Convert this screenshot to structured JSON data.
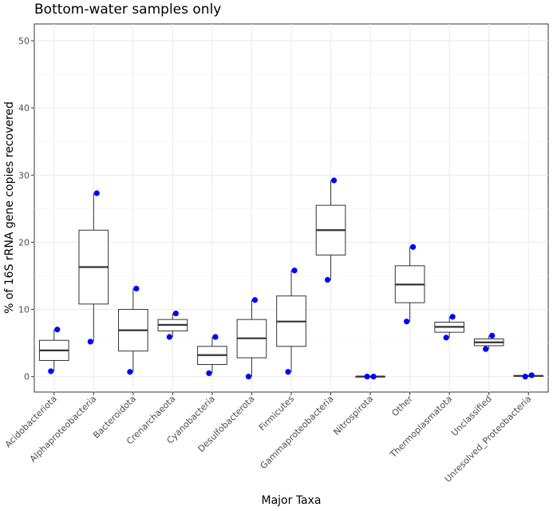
{
  "chart_data": {
    "type": "box",
    "title": "Bottom-water samples only",
    "xlabel": "Major Taxa",
    "ylabel": "% of 16S rRNA gene copies recovered",
    "ylim": [
      -2.3,
      52.5
    ],
    "y_ticks": [
      0,
      10,
      20,
      30,
      40,
      50
    ],
    "grid": true,
    "point_color": "#0000ff",
    "categories": [
      "Acidobacteriota",
      "Alphaproteobacteria",
      "Bacteroidota",
      "Crenarchaeota",
      "Cyanobacteria",
      "Desulfobacterota",
      "Firmicutes",
      "Gammaproteobacteria",
      "Nitrospirota",
      "Other",
      "Thermoplasmatota",
      "Unclassified",
      "Unresolved_Proteobacteria"
    ],
    "boxes": [
      {
        "category": "Acidobacteriota",
        "min": 0.8,
        "q1": 2.4,
        "median": 3.9,
        "q3": 5.4,
        "max": 7.0,
        "points": [
          7.0,
          0.8
        ]
      },
      {
        "category": "Alphaproteobacteria",
        "min": 5.2,
        "q1": 10.8,
        "median": 16.3,
        "q3": 21.8,
        "max": 27.3,
        "points": [
          27.3,
          5.2
        ]
      },
      {
        "category": "Bacteroidota",
        "min": 0.7,
        "q1": 3.8,
        "median": 6.9,
        "q3": 10.0,
        "max": 13.1,
        "points": [
          13.1,
          0.7
        ]
      },
      {
        "category": "Crenarchaeota",
        "min": 5.9,
        "q1": 6.8,
        "median": 7.7,
        "q3": 8.5,
        "max": 9.4,
        "points": [
          9.4,
          5.9
        ]
      },
      {
        "category": "Cyanobacteria",
        "min": 0.5,
        "q1": 1.8,
        "median": 3.2,
        "q3": 4.5,
        "max": 5.9,
        "points": [
          5.9,
          0.5
        ]
      },
      {
        "category": "Desulfobacterota",
        "min": 0.0,
        "q1": 2.8,
        "median": 5.7,
        "q3": 8.5,
        "max": 11.4,
        "points": [
          11.4,
          0.0
        ]
      },
      {
        "category": "Firmicutes",
        "min": 0.7,
        "q1": 4.5,
        "median": 8.2,
        "q3": 12.0,
        "max": 15.8,
        "points": [
          15.8,
          0.7
        ]
      },
      {
        "category": "Gammaproteobacteria",
        "min": 14.4,
        "q1": 18.1,
        "median": 21.8,
        "q3": 25.5,
        "max": 29.2,
        "points": [
          29.2,
          14.4
        ]
      },
      {
        "category": "Nitrospirota",
        "min": 0.0,
        "q1": 0.0,
        "median": 0.0,
        "q3": 0.0,
        "max": 0.0,
        "points": [
          0.0,
          0.0
        ]
      },
      {
        "category": "Other",
        "min": 8.2,
        "q1": 11.0,
        "median": 13.7,
        "q3": 16.5,
        "max": 19.3,
        "points": [
          19.3,
          8.2
        ]
      },
      {
        "category": "Thermoplasmatota",
        "min": 5.8,
        "q1": 6.6,
        "median": 7.4,
        "q3": 8.1,
        "max": 8.9,
        "points": [
          8.9,
          5.8
        ]
      },
      {
        "category": "Unclassified",
        "min": 4.1,
        "q1": 4.6,
        "median": 5.1,
        "q3": 5.6,
        "max": 6.1,
        "points": [
          6.1,
          4.1
        ]
      },
      {
        "category": "Unresolved_Proteobacteria",
        "min": 0.0,
        "q1": 0.05,
        "median": 0.1,
        "q3": 0.15,
        "max": 0.2,
        "points": [
          0.2,
          0.0
        ]
      }
    ]
  }
}
